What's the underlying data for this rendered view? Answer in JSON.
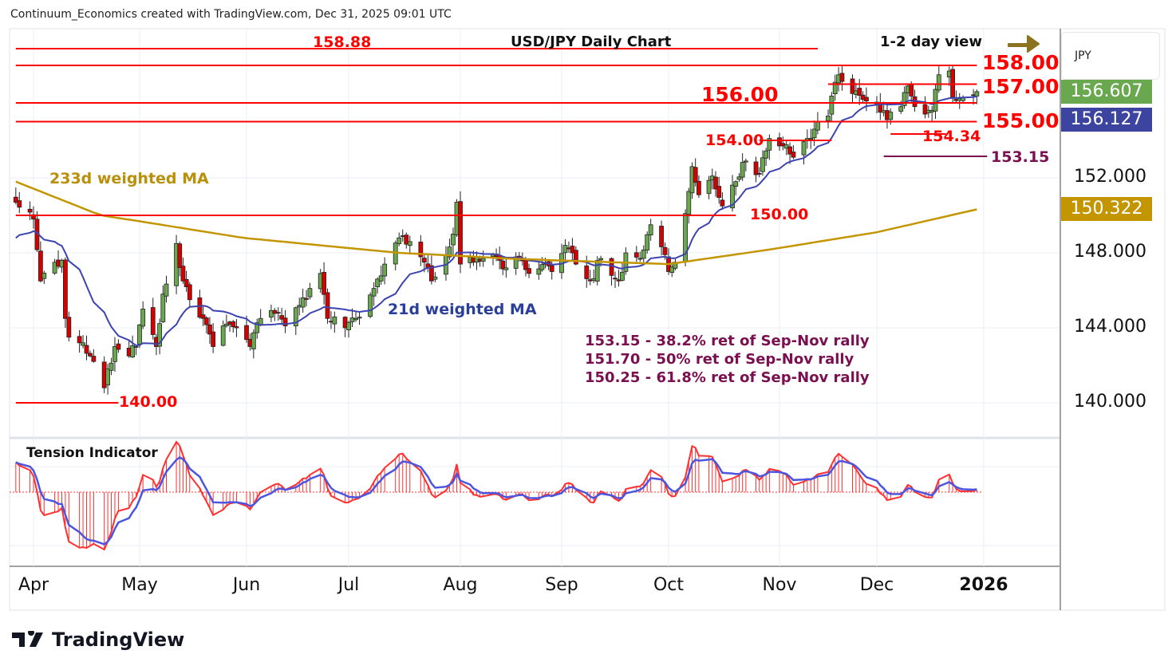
{
  "header": "Continuum_Economics created with TradingView.com, Dec 31, 2025 09:01 UTC",
  "title": "USD/JPY Daily Chart",
  "view": "1-2 day view",
  "currency": "JPY",
  "indicator_title": "Tension Indicator",
  "brand": "TradingView",
  "colors": {
    "up": "#6aa84f",
    "down": "#d50000",
    "level": "#ff0000",
    "fib": "#7a1050",
    "ma21": "#3c44b0",
    "ma233": "#c39500",
    "arrow": "#8b7320",
    "tension": "#ff3030",
    "signal": "#4b55e0"
  },
  "chart_data": {
    "type": "candlestick",
    "title": "USD/JPY Daily Chart",
    "ylim": [
      138.6,
      160.2
    ],
    "y_ticks": [
      "152.000",
      "148.000",
      "144.000",
      "140.000"
    ],
    "y_tick_values": [
      152,
      148,
      144,
      140
    ],
    "x_ticks": [
      {
        "label": "Apr",
        "date": "04-01"
      },
      {
        "label": "May",
        "date": "05-01"
      },
      {
        "label": "Jun",
        "date": "06-02"
      },
      {
        "label": "Jul",
        "date": "07-01"
      },
      {
        "label": "Aug",
        "date": "08-01"
      },
      {
        "label": "Sep",
        "date": "09-01"
      },
      {
        "label": "Oct",
        "date": "10-01"
      },
      {
        "label": "Nov",
        "date": "11-03"
      },
      {
        "label": "Dec",
        "date": "12-01"
      },
      {
        "label": "2026",
        "date": "01-01"
      }
    ],
    "close_keypoints": [
      [
        "03-27",
        150.7
      ],
      [
        "04-01",
        149.8
      ],
      [
        "04-03",
        146.5
      ],
      [
        "04-07",
        147.5
      ],
      [
        "04-09",
        147.6
      ],
      [
        "04-10",
        144.5
      ],
      [
        "04-11",
        143.5
      ],
      [
        "04-14",
        143.2
      ],
      [
        "04-17",
        142.5
      ],
      [
        "04-21",
        140.8
      ],
      [
        "04-22",
        141.8
      ],
      [
        "04-24",
        143.0
      ],
      [
        "04-28",
        142.5
      ],
      [
        "04-30",
        143.0
      ],
      [
        "05-02",
        145.0
      ],
      [
        "05-06",
        143.0
      ],
      [
        "05-08",
        145.8
      ],
      [
        "05-12",
        148.5
      ],
      [
        "05-14",
        146.5
      ],
      [
        "05-16",
        145.5
      ],
      [
        "05-20",
        144.5
      ],
      [
        "05-23",
        143.0
      ],
      [
        "05-27",
        144.2
      ],
      [
        "05-30",
        144.0
      ],
      [
        "06-03",
        143.0
      ],
      [
        "06-06",
        144.5
      ],
      [
        "06-11",
        144.8
      ],
      [
        "06-13",
        144.1
      ],
      [
        "06-17",
        145.2
      ],
      [
        "06-20",
        146.1
      ],
      [
        "06-23",
        146.9
      ],
      [
        "06-25",
        144.5
      ],
      [
        "06-30",
        144.0
      ],
      [
        "07-03",
        144.5
      ],
      [
        "07-08",
        146.1
      ],
      [
        "07-11",
        147.4
      ],
      [
        "07-15",
        148.8
      ],
      [
        "07-18",
        148.6
      ],
      [
        "07-22",
        147.5
      ],
      [
        "07-24",
        146.5
      ],
      [
        "07-28",
        147.9
      ],
      [
        "07-30",
        149.0
      ],
      [
        "07-31",
        150.7
      ],
      [
        "08-01",
        147.4
      ],
      [
        "08-05",
        147.5
      ],
      [
        "08-08",
        147.7
      ],
      [
        "08-12",
        147.8
      ],
      [
        "08-15",
        147.2
      ],
      [
        "08-19",
        147.7
      ],
      [
        "08-22",
        146.9
      ],
      [
        "08-27",
        147.4
      ],
      [
        "08-29",
        147.0
      ],
      [
        "09-02",
        148.4
      ],
      [
        "09-05",
        147.4
      ],
      [
        "09-09",
        146.5
      ],
      [
        "09-12",
        147.7
      ],
      [
        "09-17",
        146.5
      ],
      [
        "09-19",
        148.0
      ],
      [
        "09-23",
        147.7
      ],
      [
        "09-26",
        149.5
      ],
      [
        "09-30",
        147.9
      ],
      [
        "10-01",
        147.0
      ],
      [
        "10-03",
        147.5
      ],
      [
        "10-06",
        150.1
      ],
      [
        "10-08",
        152.6
      ],
      [
        "10-10",
        151.1
      ],
      [
        "10-14",
        152.1
      ],
      [
        "10-17",
        150.5
      ],
      [
        "10-21",
        151.8
      ],
      [
        "10-24",
        152.9
      ],
      [
        "10-28",
        152.2
      ],
      [
        "10-31",
        154.1
      ],
      [
        "11-04",
        153.7
      ],
      [
        "11-07",
        153.1
      ],
      [
        "11-11",
        154.1
      ],
      [
        "11-13",
        154.6
      ],
      [
        "11-17",
        155.3
      ],
      [
        "11-19",
        157.1
      ],
      [
        "11-20",
        157.5
      ],
      [
        "11-24",
        156.5
      ],
      [
        "11-26",
        156.4
      ],
      [
        "11-28",
        156.1
      ],
      [
        "12-02",
        155.5
      ],
      [
        "12-04",
        155.1
      ],
      [
        "12-08",
        155.8
      ],
      [
        "12-10",
        156.9
      ],
      [
        "12-12",
        155.8
      ],
      [
        "12-15",
        155.4
      ],
      [
        "12-17",
        155.6
      ],
      [
        "12-19",
        157.5
      ],
      [
        "12-22",
        157.7
      ],
      [
        "12-23",
        156.3
      ],
      [
        "12-26",
        156.3
      ],
      [
        "12-29",
        156.4
      ],
      [
        "12-30",
        156.6
      ]
    ],
    "ma233_keypoints": [
      [
        "03-27",
        151.8
      ],
      [
        "04-20",
        150.0
      ],
      [
        "06-01",
        148.8
      ],
      [
        "07-15",
        148.0
      ],
      [
        "08-15",
        147.7
      ],
      [
        "10-01",
        147.4
      ],
      [
        "11-01",
        148.2
      ],
      [
        "12-01",
        149.1
      ],
      [
        "12-30",
        150.32
      ]
    ],
    "levels": [
      {
        "value": 158.88,
        "label": "158.88",
        "from": "03-27",
        "to": "11-14",
        "color": "level",
        "pinned_top": true
      },
      {
        "value": 158.0,
        "label": "158.00",
        "from": "03-27",
        "to": "12-30"
      },
      {
        "value": 157.0,
        "label": "157.00",
        "from": "11-17",
        "to": "12-30"
      },
      {
        "value": 156.0,
        "label": "156.00",
        "from": "03-27",
        "to": "12-30"
      },
      {
        "value": 155.0,
        "label": "155.00",
        "from": "03-27",
        "to": "12-30"
      },
      {
        "value": 154.34,
        "label": "154.34",
        "from": "12-05",
        "to": "12-21"
      },
      {
        "value": 154.0,
        "label": "154.00",
        "from": "10-28",
        "to": "11-18"
      },
      {
        "value": 153.15,
        "label": "153.15",
        "from": "12-03",
        "to": "01-02",
        "color": "fib"
      },
      {
        "value": 150.0,
        "label": "150.00",
        "from": "03-27",
        "to": "10-21"
      },
      {
        "value": 140.0,
        "label": "140.00",
        "from": "03-27",
        "to": "04-25"
      }
    ],
    "annotations": {
      "ma233": "233d weighted MA",
      "ma21": "21d weighted MA",
      "fib": [
        "153.15 - 38.2% ret of Sep-Nov rally",
        "151.70 - 50% ret of Sep-Nov rally",
        "150.25 - 61.8% ret of Sep-Nov rally"
      ]
    },
    "price_badges": [
      {
        "label": "156.607",
        "value": 156.607,
        "color": "#6aa84f"
      },
      {
        "label": "156.127",
        "value": 156.127,
        "color": "#3c44a0"
      },
      {
        "label": "150.322",
        "value": 150.322,
        "color": "#c39500"
      }
    ]
  }
}
